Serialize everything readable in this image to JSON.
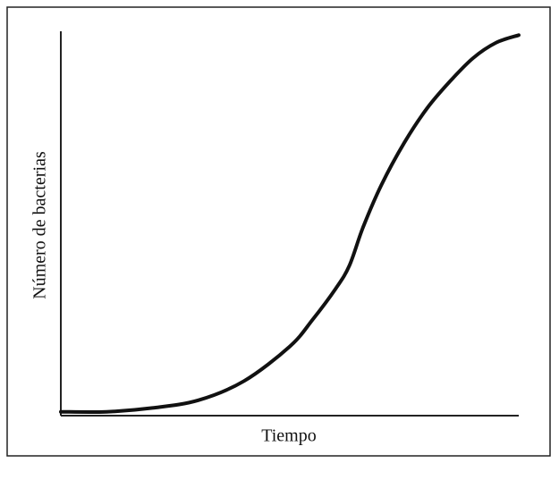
{
  "chart_data": {
    "type": "line",
    "x_label": "Tiempo",
    "y_label": "Número de bacterias",
    "x": [
      0,
      10,
      20,
      30,
      40,
      50,
      55,
      60,
      63,
      66,
      70,
      75,
      80,
      85,
      90,
      95,
      100
    ],
    "values": [
      1,
      1,
      2,
      4,
      9,
      18,
      25,
      33,
      39,
      49,
      60,
      71,
      80,
      87,
      93,
      97,
      99
    ],
    "color": "#111111",
    "xlim": [
      0,
      100
    ],
    "ylim": [
      0,
      100
    ]
  }
}
